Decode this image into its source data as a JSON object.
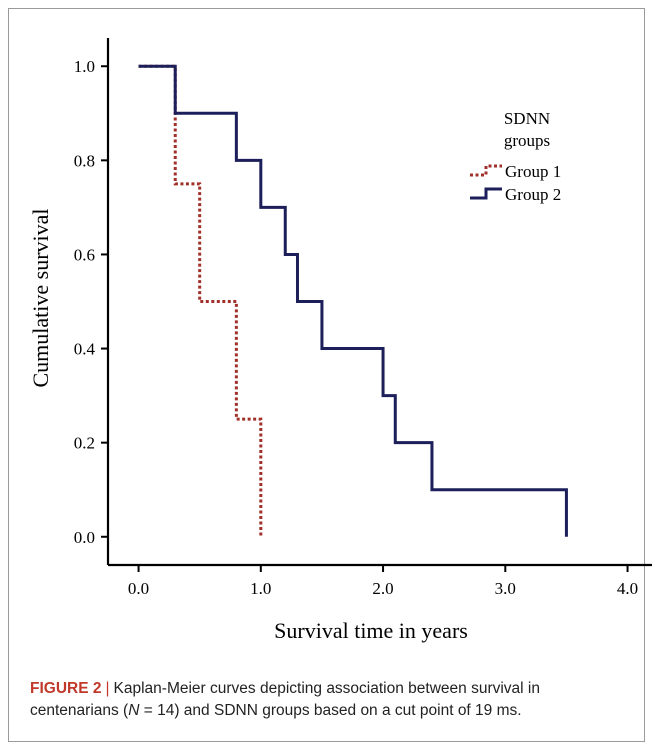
{
  "chart_data": {
    "type": "line",
    "xlabel": "Survival time in years",
    "ylabel": "Cumulative survival",
    "xlim": [
      -0.25,
      4.2
    ],
    "ylim": [
      -0.06,
      1.06
    ],
    "x_ticks": [
      "0.0",
      "1.0",
      "2.0",
      "3.0",
      "4.0"
    ],
    "y_ticks": [
      "0.0",
      "0.2",
      "0.4",
      "0.6",
      "0.8",
      "1.0"
    ],
    "legend": {
      "title_line1": "SDNN",
      "title_line2": "groups",
      "position": "top-right"
    },
    "series": [
      {
        "name": "Group 1",
        "color": "#a0302a",
        "style": "dotted",
        "steps": [
          [
            0.0,
            1.0
          ],
          [
            0.3,
            0.75
          ],
          [
            0.5,
            0.5
          ],
          [
            0.8,
            0.25
          ],
          [
            1.0,
            0.0
          ]
        ],
        "end_x": 1.0
      },
      {
        "name": "Group 2",
        "color": "#1c1f5a",
        "style": "solid",
        "steps": [
          [
            0.0,
            1.0
          ],
          [
            0.3,
            0.9
          ],
          [
            0.8,
            0.8
          ],
          [
            1.0,
            0.7
          ],
          [
            1.2,
            0.6
          ],
          [
            1.3,
            0.5
          ],
          [
            1.5,
            0.4
          ],
          [
            2.0,
            0.3
          ],
          [
            2.1,
            0.2
          ],
          [
            2.4,
            0.1
          ],
          [
            3.5,
            0.0
          ]
        ],
        "end_x": 3.5
      }
    ]
  },
  "caption": {
    "label": "FIGURE 2",
    "separator": "|",
    "text_before_n": "Kaplan-Meier curves depicting association between survival in centenarians (",
    "n_symbol": "N",
    "text_after_n": " = 14) and SDNN groups based on a cut point of 19 ms."
  }
}
